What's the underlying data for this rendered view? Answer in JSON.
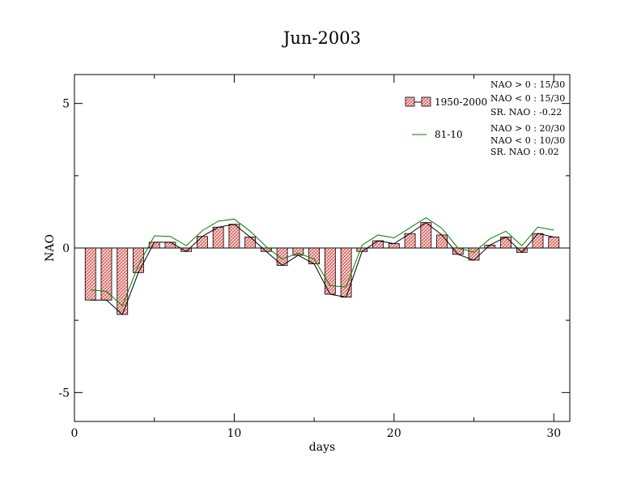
{
  "chart_data": {
    "type": "bar",
    "title": "Jun-2003",
    "xlabel": "days",
    "ylabel": "NAO",
    "xlim": [
      0,
      31
    ],
    "ylim": [
      -6,
      6
    ],
    "xticks": [
      0,
      10,
      20,
      30
    ],
    "yticks": [
      -5,
      0,
      5
    ],
    "x": [
      1,
      2,
      3,
      4,
      5,
      6,
      7,
      8,
      9,
      10,
      11,
      12,
      13,
      14,
      15,
      16,
      17,
      18,
      19,
      20,
      21,
      22,
      23,
      24,
      25,
      26,
      27,
      28,
      29,
      30
    ],
    "series": [
      {
        "name": "1950-2000",
        "kind": "bar",
        "values": [
          -1.8,
          -1.8,
          -2.3,
          -0.85,
          0.2,
          0.2,
          -0.12,
          0.4,
          0.72,
          0.82,
          0.38,
          -0.12,
          -0.6,
          -0.25,
          -0.55,
          -1.6,
          -1.7,
          -0.12,
          0.25,
          0.15,
          0.5,
          0.88,
          0.45,
          -0.22,
          -0.42,
          0.1,
          0.38,
          -0.15,
          0.5,
          0.38
        ]
      },
      {
        "name": "81-10",
        "kind": "line",
        "color": "#008000",
        "values": [
          -1.45,
          -1.5,
          -2.0,
          -0.6,
          0.42,
          0.4,
          0.08,
          0.6,
          0.93,
          1.0,
          0.58,
          0.05,
          -0.38,
          -0.18,
          -0.38,
          -1.3,
          -1.35,
          0.1,
          0.45,
          0.35,
          0.7,
          1.05,
          0.68,
          0.0,
          -0.15,
          0.32,
          0.58,
          0.08,
          0.72,
          0.62
        ]
      }
    ],
    "stats": {
      "set1": [
        "NAO > 0 : 15/30",
        "NAO < 0 : 15/30",
        "SR. NAO : -0.22"
      ],
      "set2": [
        "NAO > 0 : 20/30",
        "NAO < 0 : 10/30",
        "SR. NAO :  0.02"
      ]
    },
    "colors": {
      "bar_fill": "#e06060",
      "bar_hatch": "#ffffff",
      "line": "#008000",
      "axis": "#000000"
    }
  }
}
